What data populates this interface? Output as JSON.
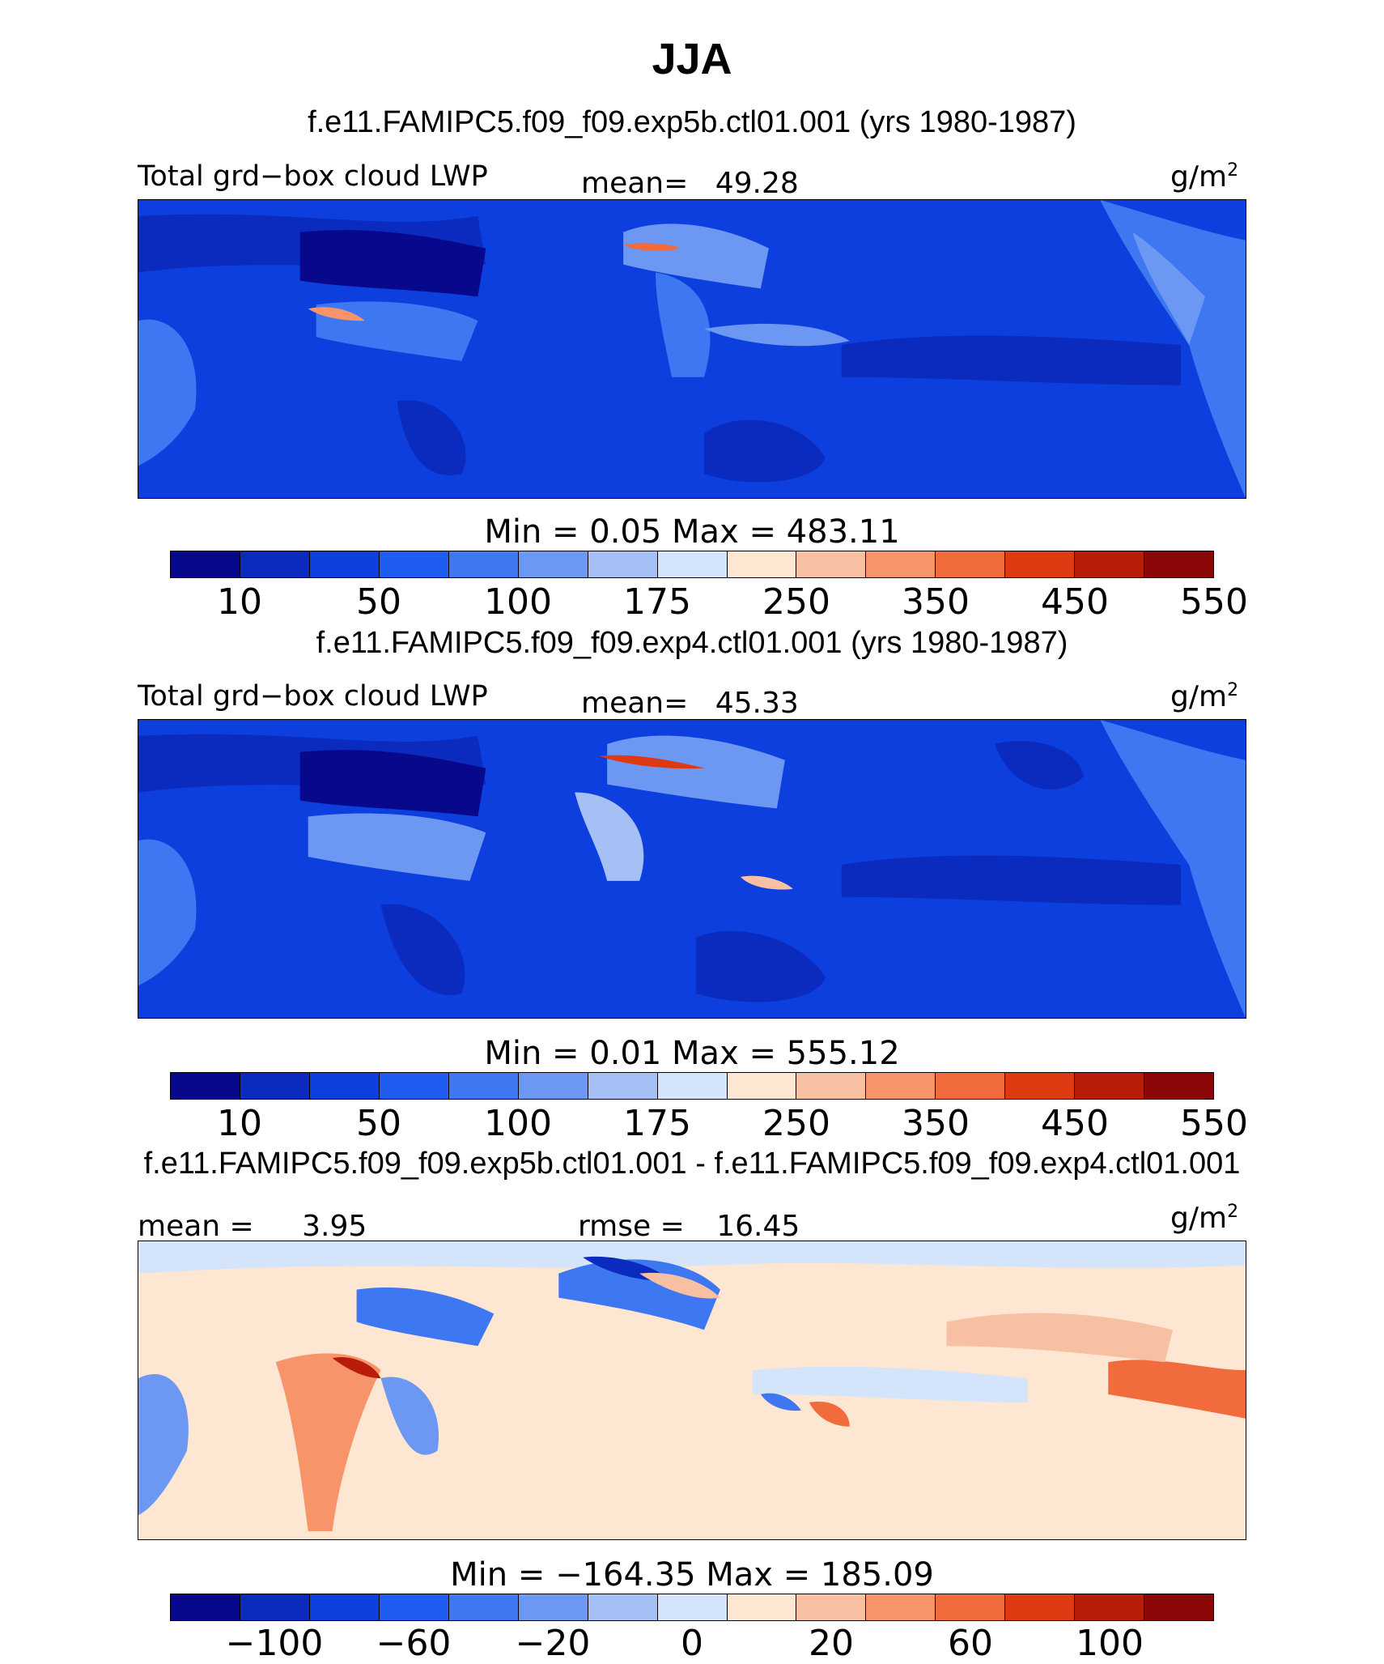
{
  "header": {
    "title": "JJA"
  },
  "colormap": {
    "abs_colors": [
      "#08088c",
      "#0a2bbd",
      "#0c3fde",
      "#1f5cf0",
      "#3d78f2",
      "#6c97f2",
      "#a4c0f4",
      "#d4e4fa",
      "#fde6d2",
      "#f8c0a2",
      "#f7946a",
      "#f26b3c",
      "#dd3a12",
      "#b81d0a",
      "#8c0707"
    ],
    "diff_colors": [
      "#08088c",
      "#0a2bbd",
      "#0c3fde",
      "#1f5cf0",
      "#3d78f2",
      "#6c97f2",
      "#a4c0f4",
      "#d4e4fa",
      "#fde6d2",
      "#f8c0a2",
      "#f7946a",
      "#f26b3c",
      "#dd3a12",
      "#b81d0a",
      "#8c0707"
    ]
  },
  "panel1": {
    "subtitle": "f.e11.FAMIPC5.f09_f09.exp5b.ctl01.001 (yrs 1980-1987)",
    "variable": "Total grd−box cloud LWP",
    "mean_label": "mean=",
    "mean_value": "49.28",
    "units": "g/m",
    "units_sup": "2",
    "minmax": "Min  =     0.05  Max  =  483.11",
    "ticks": [
      "10",
      "50",
      "100",
      "175",
      "250",
      "350",
      "450",
      "550"
    ]
  },
  "panel2": {
    "subtitle": "f.e11.FAMIPC5.f09_f09.exp4.ctl01.001 (yrs 1980-1987)",
    "variable": "Total grd−box cloud LWP",
    "mean_label": "mean=",
    "mean_value": "45.33",
    "units": "g/m",
    "units_sup": "2",
    "minmax": "Min  =     0.01  Max  =  555.12",
    "ticks": [
      "10",
      "50",
      "100",
      "175",
      "250",
      "350",
      "450",
      "550"
    ]
  },
  "panel3": {
    "subtitle": "f.e11.FAMIPC5.f09_f09.exp5b.ctl01.001 - f.e11.FAMIPC5.f09_f09.exp4.ctl01.001",
    "mean_label": "mean  =",
    "mean_value": "3.95",
    "rmse_label": "rmse  =",
    "rmse_value": "16.45",
    "units": "g/m",
    "units_sup": "2",
    "minmax": "Min  =  −164.35  Max  =  185.09",
    "ticks": [
      "−100",
      "−60",
      "−20",
      "0",
      "20",
      "60",
      "100"
    ]
  }
}
